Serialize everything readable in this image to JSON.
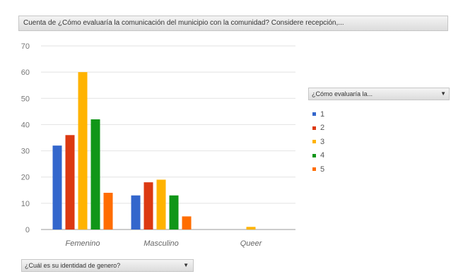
{
  "header": {
    "title": "Cuenta de ¿Cómo evaluaría la comunicación del municipio con la comunidad? Considere recepción,..."
  },
  "legend_filter": {
    "label": "¿Cómo evaluaría la..."
  },
  "axis_filter": {
    "label": "¿Cuál es su identidad de genero?"
  },
  "icons": {
    "legend_dropdown": "chevron-down-icon",
    "axis_dropdown": "chevron-down-icon"
  },
  "chart_data": {
    "type": "bar",
    "categories": [
      "Femenino",
      "Masculino",
      "Queer"
    ],
    "series": [
      {
        "name": "1",
        "color": "#3366cc",
        "values": [
          32,
          13,
          0
        ]
      },
      {
        "name": "2",
        "color": "#dc3912",
        "values": [
          36,
          18,
          0
        ]
      },
      {
        "name": "3",
        "color": "#ffb300",
        "values": [
          60,
          19,
          1
        ]
      },
      {
        "name": "4",
        "color": "#109618",
        "values": [
          42,
          13,
          0
        ]
      },
      {
        "name": "5",
        "color": "#ff6d00",
        "values": [
          14,
          5,
          0
        ]
      }
    ],
    "yticks": [
      0,
      10,
      20,
      30,
      40,
      50,
      60,
      70
    ],
    "ylim": [
      0,
      70
    ],
    "grid": true,
    "legend_position": "right"
  }
}
